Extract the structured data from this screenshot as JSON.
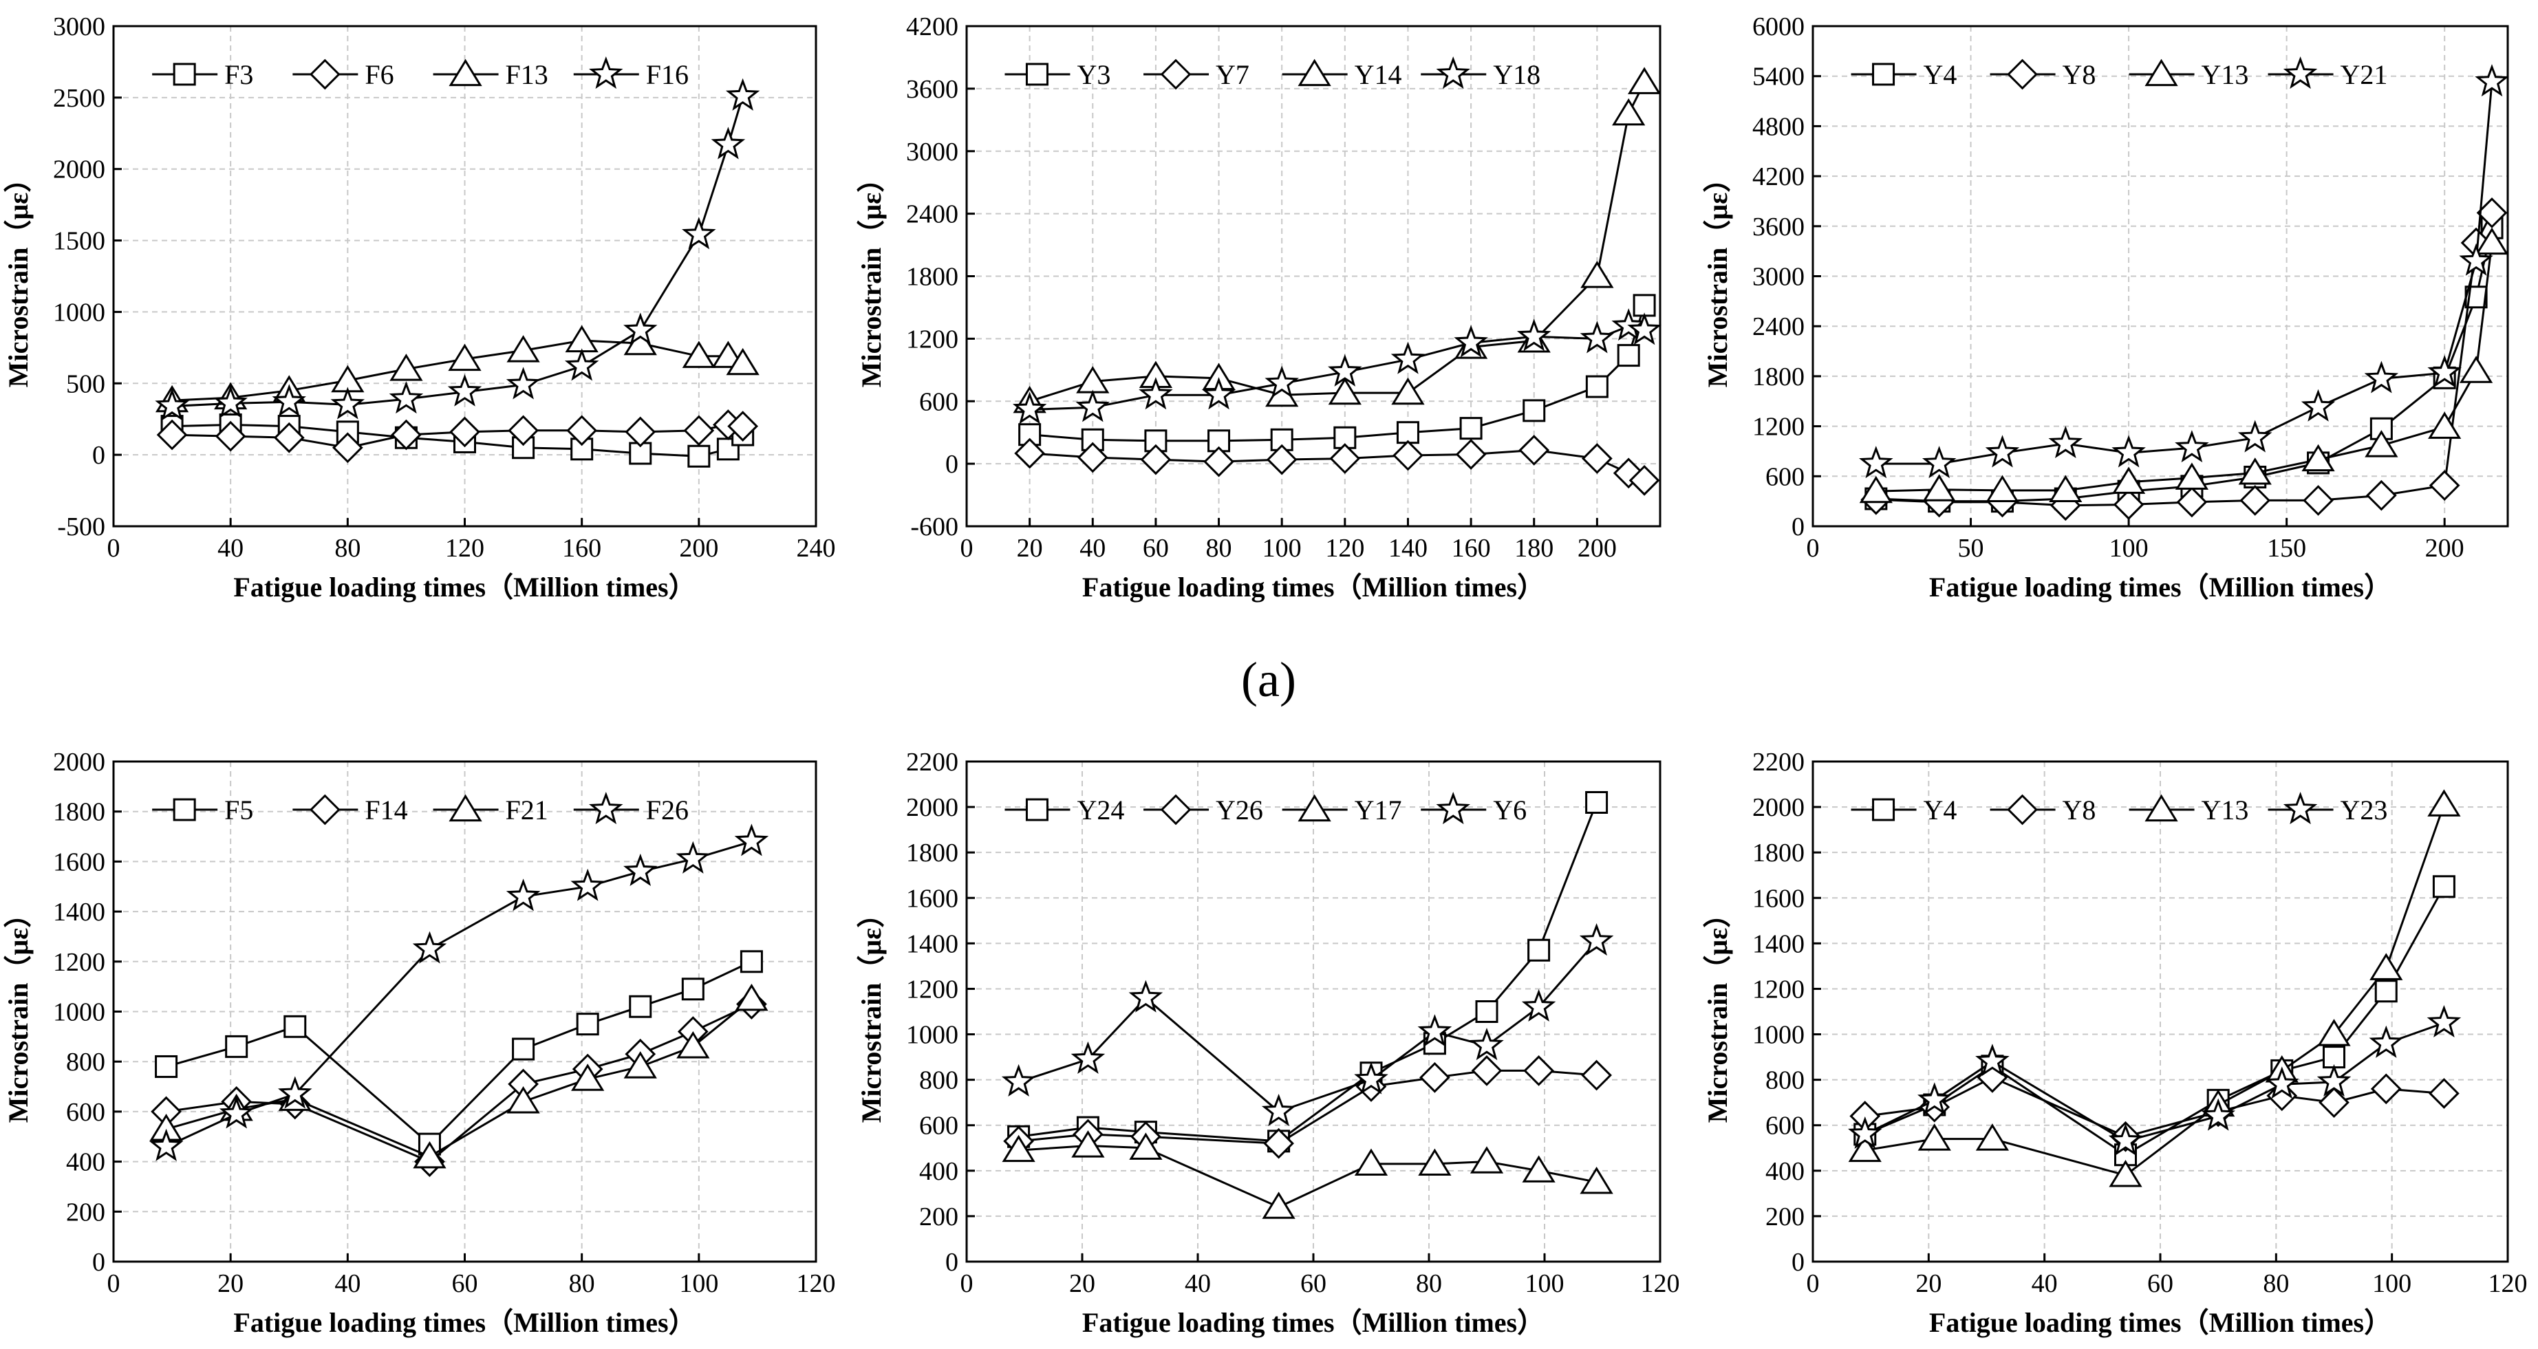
{
  "figure_labels": {
    "a": "(a)"
  },
  "chart_data": [
    {
      "type": "line",
      "xlabel": "Fatigue loading times（Million times）",
      "ylabel": "Microstrain（με）",
      "xlim": [
        0,
        240
      ],
      "xticks": [
        0,
        40,
        80,
        120,
        160,
        200,
        240
      ],
      "ylim": [
        -500,
        3000
      ],
      "yticks": [
        -500,
        0,
        500,
        1000,
        1500,
        2000,
        2500,
        3000
      ],
      "grid": true,
      "legend_position": "top",
      "x": [
        20,
        40,
        60,
        80,
        100,
        120,
        140,
        160,
        180,
        200,
        210,
        215
      ],
      "series": [
        {
          "name": "F3",
          "marker": "square",
          "values": [
            200,
            210,
            200,
            160,
            120,
            90,
            50,
            40,
            10,
            -10,
            40,
            140
          ]
        },
        {
          "name": "F6",
          "marker": "diamond",
          "values": [
            140,
            130,
            120,
            50,
            140,
            160,
            170,
            170,
            160,
            170,
            210,
            200
          ]
        },
        {
          "name": "F13",
          "marker": "triangle",
          "values": [
            380,
            400,
            450,
            520,
            600,
            670,
            730,
            800,
            780,
            690,
            690,
            640
          ]
        },
        {
          "name": "F16",
          "marker": "star",
          "values": [
            340,
            360,
            370,
            350,
            390,
            440,
            490,
            620,
            870,
            1540,
            2170,
            2510
          ]
        }
      ]
    },
    {
      "type": "line",
      "xlabel": "Fatigue loading times（Million times）",
      "ylabel": "Microstrain（με）",
      "xlim": [
        0,
        220
      ],
      "xticks": [
        0,
        20,
        40,
        60,
        80,
        100,
        120,
        140,
        160,
        180,
        200
      ],
      "ylim": [
        -600,
        4200
      ],
      "yticks": [
        -600,
        0,
        600,
        1200,
        1800,
        2400,
        3000,
        3600,
        4200
      ],
      "grid": true,
      "legend_position": "top",
      "x": [
        20,
        40,
        60,
        80,
        100,
        120,
        140,
        160,
        180,
        200,
        210,
        215
      ],
      "series": [
        {
          "name": "Y3",
          "marker": "square",
          "values": [
            280,
            230,
            220,
            220,
            230,
            250,
            300,
            340,
            510,
            740,
            1040,
            1520
          ]
        },
        {
          "name": "Y7",
          "marker": "diamond",
          "values": [
            100,
            60,
            40,
            20,
            40,
            50,
            80,
            90,
            130,
            50,
            -90,
            -160
          ]
        },
        {
          "name": "Y14",
          "marker": "triangle",
          "values": [
            600,
            790,
            840,
            820,
            660,
            680,
            680,
            1120,
            1180,
            1800,
            3360,
            3660
          ]
        },
        {
          "name": "Y18",
          "marker": "star",
          "values": [
            520,
            540,
            660,
            660,
            770,
            880,
            1000,
            1160,
            1220,
            1200,
            1320,
            1280
          ]
        }
      ]
    },
    {
      "type": "line",
      "xlabel": "Fatigue loading times（Million times）",
      "ylabel": "Microstrain（με）",
      "xlim": [
        0,
        220
      ],
      "xticks": [
        0,
        50,
        100,
        150,
        200
      ],
      "ylim": [
        0,
        6000
      ],
      "yticks": [
        0,
        600,
        1200,
        1800,
        2400,
        3000,
        3600,
        4200,
        4800,
        5400,
        6000
      ],
      "grid": true,
      "legend_position": "top",
      "x": [
        20,
        40,
        60,
        80,
        100,
        120,
        140,
        160,
        180,
        200,
        210,
        215
      ],
      "series": [
        {
          "name": "Y4",
          "marker": "square",
          "values": [
            330,
            300,
            300,
            330,
            420,
            480,
            590,
            760,
            1170,
            1780,
            2750,
            3580
          ]
        },
        {
          "name": "Y8",
          "marker": "diamond",
          "values": [
            320,
            290,
            290,
            250,
            260,
            290,
            310,
            310,
            370,
            490,
            3400,
            3760
          ]
        },
        {
          "name": "Y13",
          "marker": "triangle",
          "values": [
            420,
            440,
            430,
            430,
            530,
            580,
            640,
            800,
            970,
            1190,
            1860,
            3400
          ]
        },
        {
          "name": "Y21",
          "marker": "star",
          "values": [
            750,
            750,
            880,
            990,
            880,
            940,
            1060,
            1430,
            1770,
            1840,
            3180,
            5330
          ]
        }
      ]
    },
    {
      "type": "line",
      "xlabel": "Fatigue loading times（Million times）",
      "ylabel": "Microstrain（με）",
      "xlim": [
        0,
        120
      ],
      "xticks": [
        0,
        20,
        40,
        60,
        80,
        100,
        120
      ],
      "ylim": [
        0,
        2000
      ],
      "yticks": [
        0,
        200,
        400,
        600,
        800,
        1000,
        1200,
        1400,
        1600,
        1800,
        2000
      ],
      "grid": true,
      "legend_position": "top",
      "x": [
        9,
        21,
        31,
        54,
        70,
        81,
        90,
        99,
        109
      ],
      "series": [
        {
          "name": "F5",
          "marker": "square",
          "values": [
            780,
            860,
            940,
            470,
            850,
            950,
            1020,
            1090,
            1200
          ]
        },
        {
          "name": "F14",
          "marker": "diamond",
          "values": [
            600,
            640,
            630,
            400,
            710,
            770,
            830,
            920,
            1030
          ]
        },
        {
          "name": "F21",
          "marker": "triangle",
          "values": [
            530,
            610,
            650,
            420,
            640,
            730,
            780,
            860,
            1050
          ]
        },
        {
          "name": "F26",
          "marker": "star",
          "values": [
            460,
            590,
            670,
            1250,
            1460,
            1500,
            1560,
            1610,
            1680
          ]
        }
      ]
    },
    {
      "type": "line",
      "xlabel": "Fatigue loading times（Million times）",
      "ylabel": "Microstrain（με）",
      "xlim": [
        0,
        120
      ],
      "xticks": [
        0,
        20,
        40,
        60,
        80,
        100,
        120
      ],
      "ylim": [
        0,
        2200
      ],
      "yticks": [
        0,
        200,
        400,
        600,
        800,
        1000,
        1200,
        1400,
        1600,
        1800,
        2000,
        2200
      ],
      "grid": true,
      "legend_position": "top",
      "x": [
        9,
        21,
        31,
        54,
        70,
        81,
        90,
        99,
        109
      ],
      "series": [
        {
          "name": "Y24",
          "marker": "square",
          "values": [
            550,
            590,
            570,
            530,
            830,
            960,
            1100,
            1370,
            2020
          ]
        },
        {
          "name": "Y26",
          "marker": "diamond",
          "values": [
            530,
            560,
            550,
            520,
            770,
            810,
            840,
            840,
            820
          ]
        },
        {
          "name": "Y17",
          "marker": "triangle",
          "values": [
            490,
            510,
            500,
            240,
            430,
            430,
            440,
            400,
            350
          ]
        },
        {
          "name": "Y6",
          "marker": "star",
          "values": [
            790,
            890,
            1160,
            660,
            800,
            1010,
            950,
            1120,
            1410
          ]
        }
      ]
    },
    {
      "type": "line",
      "xlabel": "Fatigue loading times（Million times）",
      "ylabel": "Microstrain（με）",
      "xlim": [
        0,
        120
      ],
      "xticks": [
        0,
        20,
        40,
        60,
        80,
        100,
        120
      ],
      "ylim": [
        0,
        2200
      ],
      "yticks": [
        0,
        200,
        400,
        600,
        800,
        1000,
        1200,
        1400,
        1600,
        1800,
        2000,
        2200
      ],
      "grid": true,
      "legend_position": "top",
      "x": [
        9,
        21,
        31,
        54,
        70,
        81,
        90,
        99,
        109
      ],
      "series": [
        {
          "name": "Y4",
          "marker": "square",
          "values": [
            560,
            690,
            860,
            470,
            710,
            840,
            900,
            1190,
            1650
          ]
        },
        {
          "name": "Y8",
          "marker": "diamond",
          "values": [
            640,
            680,
            810,
            550,
            660,
            730,
            700,
            760,
            740
          ]
        },
        {
          "name": "Y13",
          "marker": "triangle",
          "values": [
            490,
            540,
            540,
            380,
            690,
            840,
            1000,
            1290,
            2010
          ]
        },
        {
          "name": "Y23",
          "marker": "star",
          "values": [
            560,
            710,
            880,
            530,
            640,
            780,
            790,
            960,
            1050
          ]
        }
      ]
    }
  ]
}
